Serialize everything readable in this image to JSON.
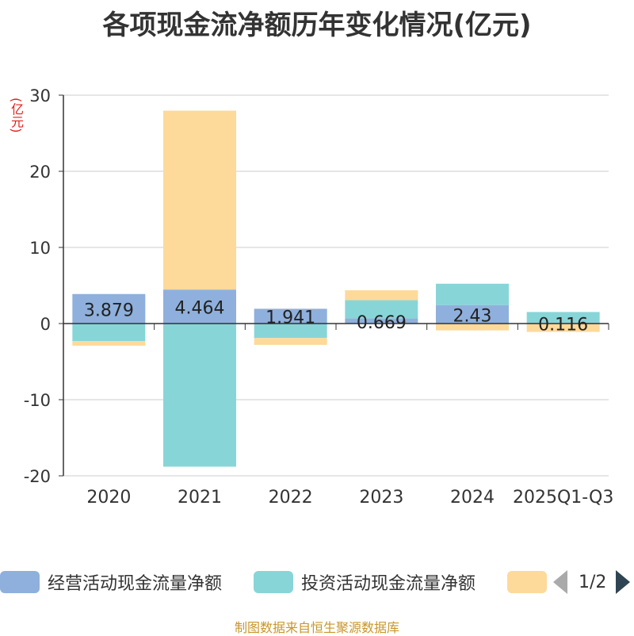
{
  "title": "各项现金流净额历年变化情况(亿元)",
  "unit_label": "(亿元)",
  "source": "制图数据来自恒生聚源数据库",
  "pagination": {
    "text": "1/2"
  },
  "chart_data": {
    "type": "bar",
    "stacked": true,
    "title": "各项现金流净额历年变化情况(亿元)",
    "ylabel": "(亿元)",
    "ylim": [
      -20,
      30
    ],
    "yticks": [
      30,
      20,
      10,
      0,
      -10,
      -20
    ],
    "grid": true,
    "categories": [
      "2020",
      "2021",
      "2022",
      "2023",
      "2024",
      "2025Q1-Q3"
    ],
    "series": [
      {
        "name": "经营活动现金流量净额",
        "color": "#8fb0dc",
        "values": [
          3.879,
          4.464,
          1.941,
          0.669,
          2.43,
          0.116
        ]
      },
      {
        "name": "投资活动现金流量净额",
        "color": "#88d5d8",
        "values": [
          -2.3,
          -18.8,
          -1.9,
          2.4,
          2.8,
          1.4
        ]
      },
      {
        "name": "",
        "color": "#fdd99a",
        "values": [
          -0.6,
          23.5,
          -0.9,
          1.3,
          -0.9,
          -1.1
        ]
      }
    ],
    "data_labels": [
      "3.879",
      "4.464",
      "1.941",
      "0.669",
      "2.43",
      "0.116"
    ]
  }
}
